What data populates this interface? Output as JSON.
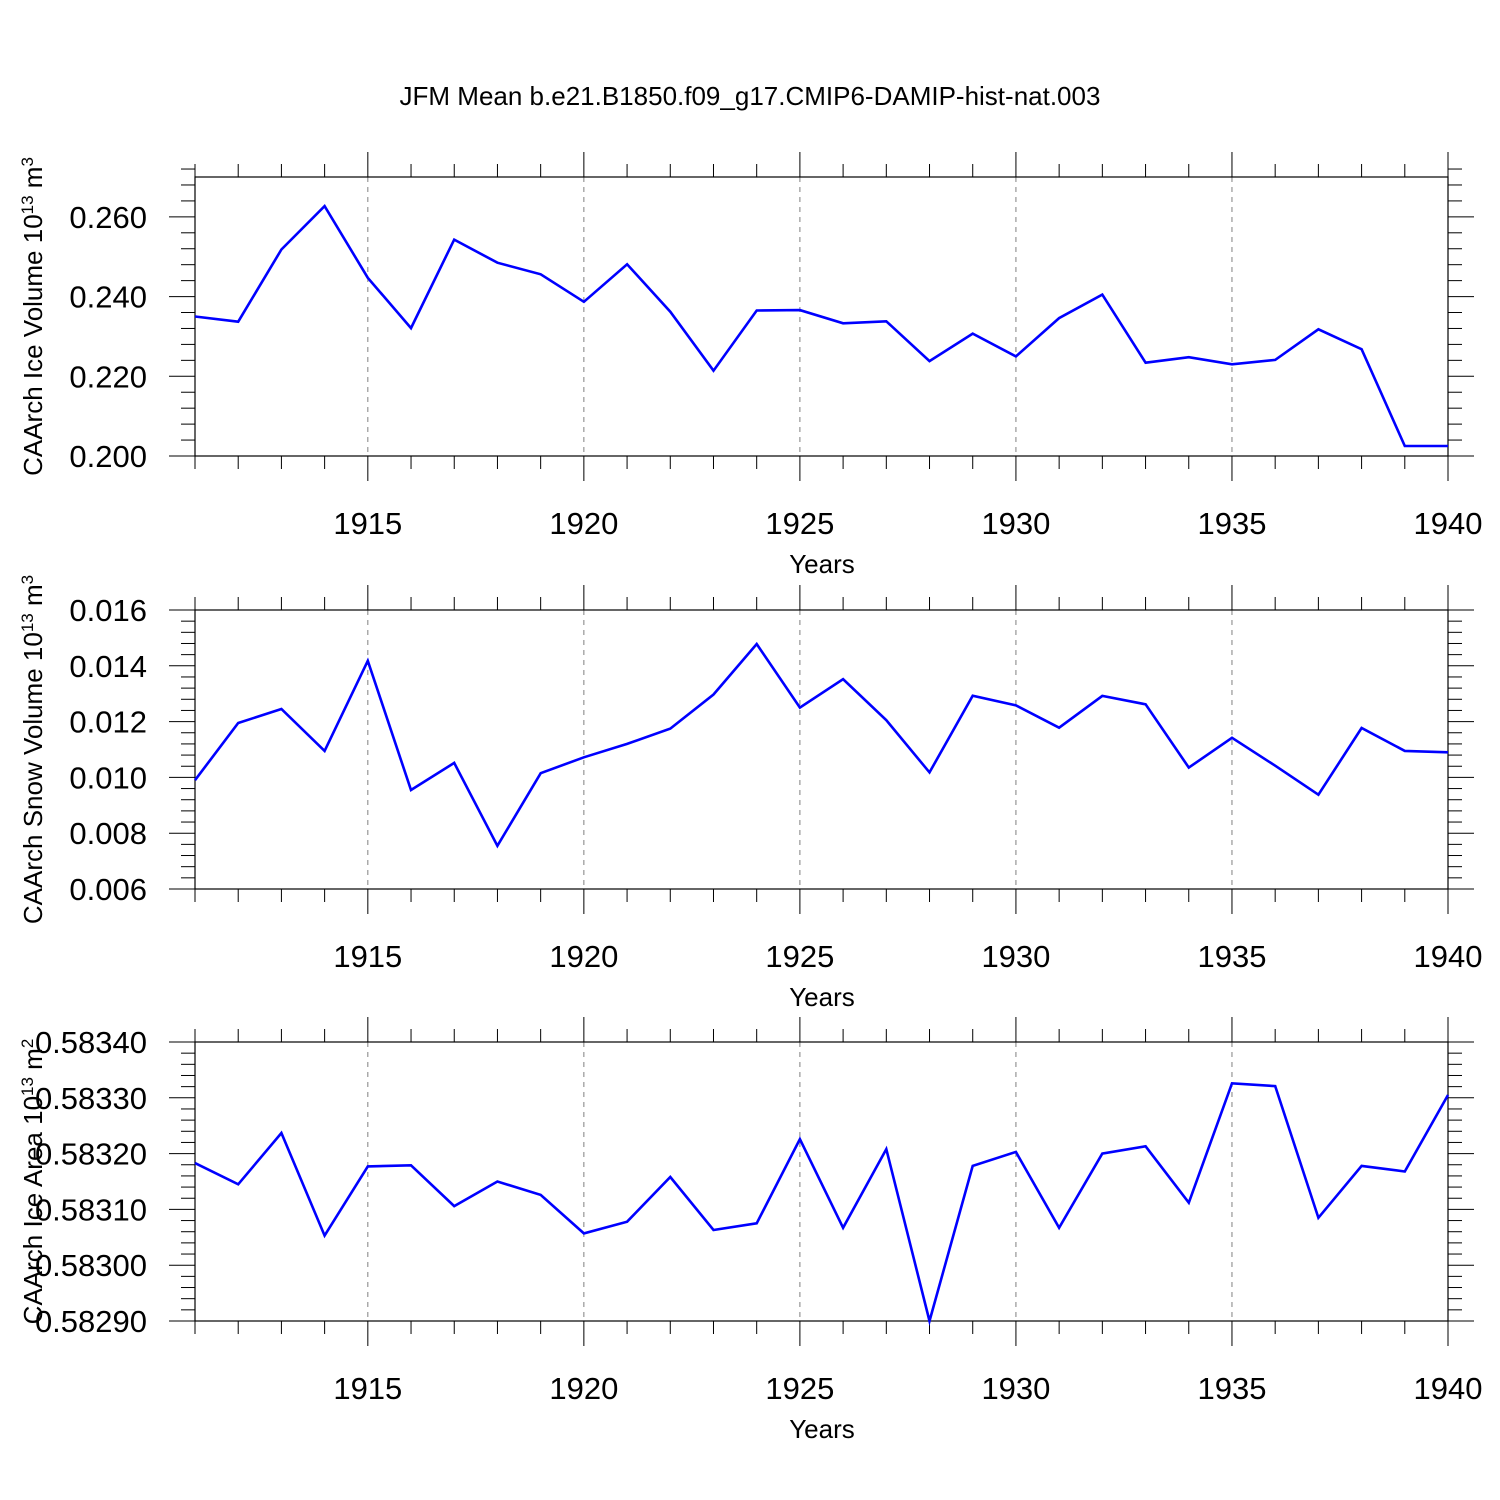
{
  "title": "JFM Mean b.e21.B1850.f09_g17.CMIP6-DAMIP-hist-nat.003",
  "colors": {
    "line": "#0000ff",
    "axis": "#000000",
    "grid": "#808080"
  },
  "chart_data": [
    {
      "type": "line",
      "ylabel_prefix": "CAArch Ice Volume 10",
      "ylabel_sup": "13",
      "ylabel_unit": " m",
      "ylabel_unit_sup": "3",
      "xlabel": "Years",
      "xlim": [
        1911,
        1940
      ],
      "ylim": [
        0.2,
        0.27
      ],
      "ytick_values": [
        0.2,
        0.22,
        0.24,
        0.26
      ],
      "ytick_labels": [
        "0.200",
        "0.220",
        "0.240",
        "0.260"
      ],
      "xtick_values": [
        1915,
        1920,
        1925,
        1930,
        1935,
        1940
      ],
      "xtick_labels": [
        "1915",
        "1920",
        "1925",
        "1930",
        "1935",
        "1940"
      ],
      "x": [
        1911,
        1912,
        1913,
        1914,
        1915,
        1916,
        1917,
        1918,
        1919,
        1920,
        1921,
        1922,
        1923,
        1924,
        1925,
        1926,
        1927,
        1928,
        1929,
        1930,
        1931,
        1932,
        1933,
        1934,
        1935,
        1936,
        1937,
        1938,
        1939,
        1940
      ],
      "values": [
        0.235,
        0.2337,
        0.2518,
        0.2627,
        0.2447,
        0.2321,
        0.2543,
        0.2485,
        0.2456,
        0.2387,
        0.2481,
        0.2362,
        0.2214,
        0.2365,
        0.2366,
        0.2333,
        0.2338,
        0.2238,
        0.2307,
        0.225,
        0.2346,
        0.2405,
        0.2234,
        0.2248,
        0.223,
        0.2241,
        0.2318,
        0.2268,
        0.2025,
        0.2025
      ]
    },
    {
      "type": "line",
      "ylabel_prefix": "CAArch Snow Volume 10",
      "ylabel_sup": "13",
      "ylabel_unit": " m",
      "ylabel_unit_sup": "3",
      "xlabel": "Years",
      "xlim": [
        1911,
        1940
      ],
      "ylim": [
        0.006,
        0.016
      ],
      "ytick_values": [
        0.006,
        0.008,
        0.01,
        0.012,
        0.014,
        0.016
      ],
      "ytick_labels": [
        "0.006",
        "0.008",
        "0.010",
        "0.012",
        "0.014",
        "0.016"
      ],
      "xtick_values": [
        1915,
        1920,
        1925,
        1930,
        1935,
        1940
      ],
      "xtick_labels": [
        "1915",
        "1920",
        "1925",
        "1930",
        "1935",
        "1940"
      ],
      "x": [
        1911,
        1912,
        1913,
        1914,
        1915,
        1916,
        1917,
        1918,
        1919,
        1920,
        1921,
        1922,
        1923,
        1924,
        1925,
        1926,
        1927,
        1928,
        1929,
        1930,
        1931,
        1932,
        1933,
        1934,
        1935,
        1936,
        1937,
        1938,
        1939,
        1940
      ],
      "values": [
        0.0099,
        0.01195,
        0.01245,
        0.01095,
        0.01418,
        0.00955,
        0.01052,
        0.00755,
        0.01015,
        0.01072,
        0.0112,
        0.01175,
        0.01297,
        0.01478,
        0.0125,
        0.01352,
        0.01205,
        0.01018,
        0.01293,
        0.01258,
        0.01178,
        0.01292,
        0.01262,
        0.01035,
        0.01142,
        0.01042,
        0.00938,
        0.01177,
        0.01095,
        0.0109
      ]
    },
    {
      "type": "line",
      "ylabel_prefix": "CAArch Ice Area 10",
      "ylabel_sup": "13",
      "ylabel_unit": " m",
      "ylabel_unit_sup": "2",
      "xlabel": "Years",
      "xlim": [
        1911,
        1940
      ],
      "ylim": [
        0.5829,
        0.5834
      ],
      "ytick_values": [
        0.5829,
        0.583,
        0.5831,
        0.5832,
        0.5833,
        0.5834
      ],
      "ytick_labels": [
        "0.58290",
        "0.58300",
        "0.58310",
        "0.58320",
        "0.58330",
        "0.58340"
      ],
      "xtick_values": [
        1915,
        1920,
        1925,
        1930,
        1935,
        1940
      ],
      "xtick_labels": [
        "1915",
        "1920",
        "1925",
        "1930",
        "1935",
        "1940"
      ],
      "x": [
        1911,
        1912,
        1913,
        1914,
        1915,
        1916,
        1917,
        1918,
        1919,
        1920,
        1921,
        1922,
        1923,
        1924,
        1925,
        1926,
        1927,
        1928,
        1929,
        1930,
        1931,
        1932,
        1933,
        1934,
        1935,
        1936,
        1937,
        1938,
        1939,
        1940
      ],
      "values": [
        0.583183,
        0.583145,
        0.583237,
        0.583053,
        0.583177,
        0.583179,
        0.583106,
        0.58315,
        0.583126,
        0.583057,
        0.583078,
        0.583158,
        0.583063,
        0.583075,
        0.583226,
        0.583067,
        0.583208,
        0.5829,
        0.583178,
        0.583203,
        0.583067,
        0.5832,
        0.583213,
        0.583112,
        0.583326,
        0.583321,
        0.583085,
        0.583178,
        0.583168,
        0.583305
      ]
    }
  ]
}
